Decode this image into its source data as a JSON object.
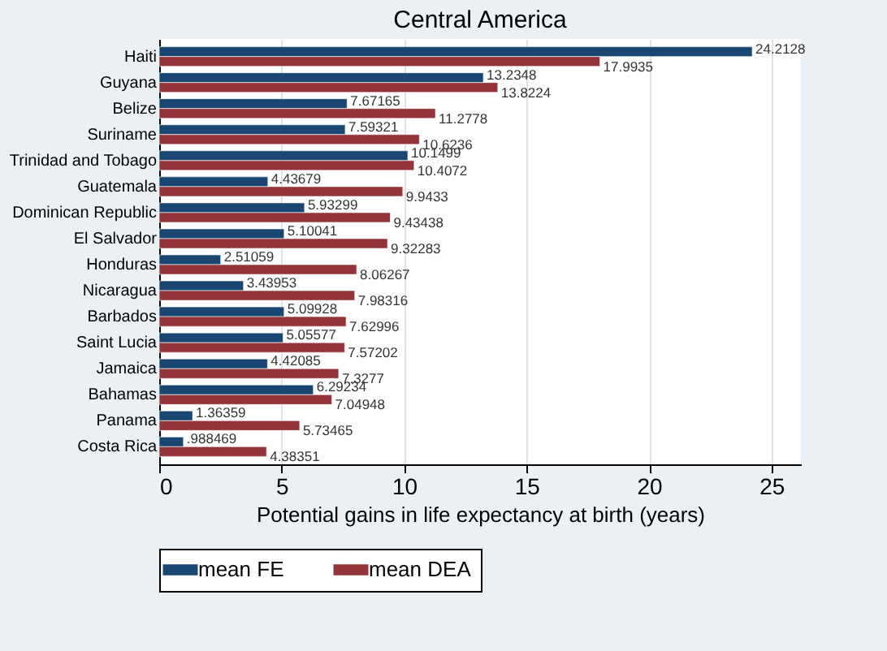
{
  "chart_data": {
    "type": "bar",
    "orientation": "horizontal",
    "title": "Central America",
    "xlabel": "Potential gains in life expectancy at birth (years)",
    "categories": [
      "Haiti",
      "Guyana",
      "Belize",
      "Suriname",
      "Trinidad and Tobago",
      "Guatemala",
      "Dominican Republic",
      "El Salvador",
      "Honduras",
      "Nicaragua",
      "Barbados",
      "Saint Lucia",
      "Jamaica",
      "Bahamas",
      "Panama",
      "Costa Rica"
    ],
    "series": [
      {
        "name": "mean FE",
        "color": "#1a4672",
        "values": [
          24.2128,
          13.2348,
          7.67165,
          7.59321,
          10.1499,
          4.43679,
          5.93299,
          5.10041,
          2.51059,
          3.43953,
          5.09928,
          5.05577,
          4.42085,
          6.29234,
          1.36359,
          0.988469
        ],
        "value_labels": [
          "24.2128",
          "13.2348",
          "7.67165",
          "7.59321",
          "10.1499",
          "4.43679",
          "5.93299",
          "5.10041",
          "2.51059",
          "3.43953",
          "5.09928",
          "5.05577",
          "4.42085",
          "6.29234",
          "1.36359",
          ".988469"
        ]
      },
      {
        "name": "mean DEA",
        "color": "#93343a",
        "values": [
          17.9935,
          13.8224,
          11.2778,
          10.6236,
          10.4072,
          9.9433,
          9.43438,
          9.32283,
          8.06267,
          7.98316,
          7.62996,
          7.57202,
          7.3277,
          7.04948,
          5.73465,
          4.38351
        ],
        "value_labels": [
          "17.9935",
          "13.8224",
          "11.2778",
          "10.6236",
          "10.4072",
          "9.9433",
          "9.43438",
          "9.32283",
          "8.06267",
          "7.98316",
          "7.62996",
          "7.57202",
          "7.3277",
          "7.04948",
          "5.73465",
          "4.38351"
        ]
      }
    ],
    "xlim": [
      0,
      26.2
    ],
    "xticks": [
      0,
      5,
      10,
      15,
      20,
      25
    ],
    "grid": "x",
    "legend": "bottom"
  }
}
